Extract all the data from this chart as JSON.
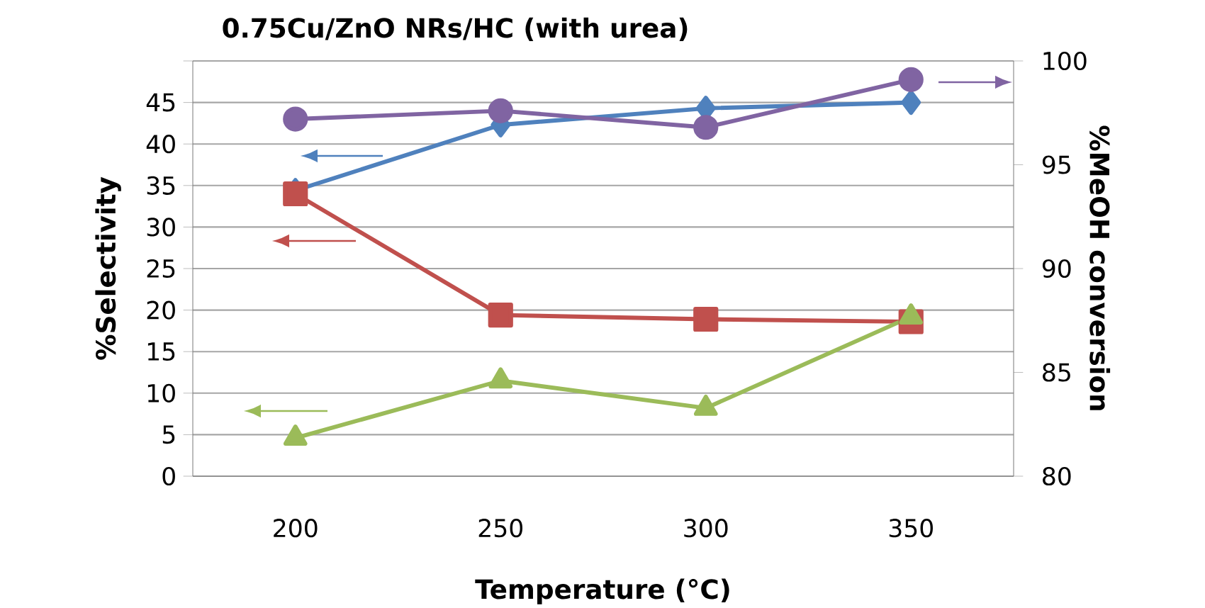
{
  "chart_data": {
    "type": "line",
    "title": "0.75Cu/ZnO NRs/HC (with urea)",
    "xlabel": "Temperature (°C)",
    "ylabel": "%Selectivity",
    "y2label": "%MeOH conversion",
    "categories": [
      "200",
      "250",
      "300",
      "350"
    ],
    "series": [
      {
        "color": "#4f81bd",
        "marker": "diamond",
        "values": [
          34.4,
          42.3,
          44.3,
          45
        ]
      },
      {
        "color": "#c0504d",
        "marker": "square",
        "values": [
          34,
          19.4,
          18.9,
          18.6
        ]
      },
      {
        "color": "#9bbb59",
        "marker": "triangle",
        "values": [
          4.6,
          11.5,
          8.2,
          19.2
        ]
      },
      {
        "color": "#8064a2",
        "marker": "circle",
        "axis": "y2",
        "values": [
          97.2,
          97.6,
          96.8,
          99.1
        ]
      }
    ],
    "ylim": [
      0,
      50
    ],
    "yticks": [
      0,
      5,
      10,
      15,
      20,
      25,
      30,
      35,
      40,
      45,
      {
        "value": 50,
        "label": null
      }
    ],
    "y2lim": [
      80,
      100
    ],
    "y2ticks": [
      80,
      85,
      90,
      95,
      100
    ],
    "grid": "y",
    "line_style": "solid"
  }
}
